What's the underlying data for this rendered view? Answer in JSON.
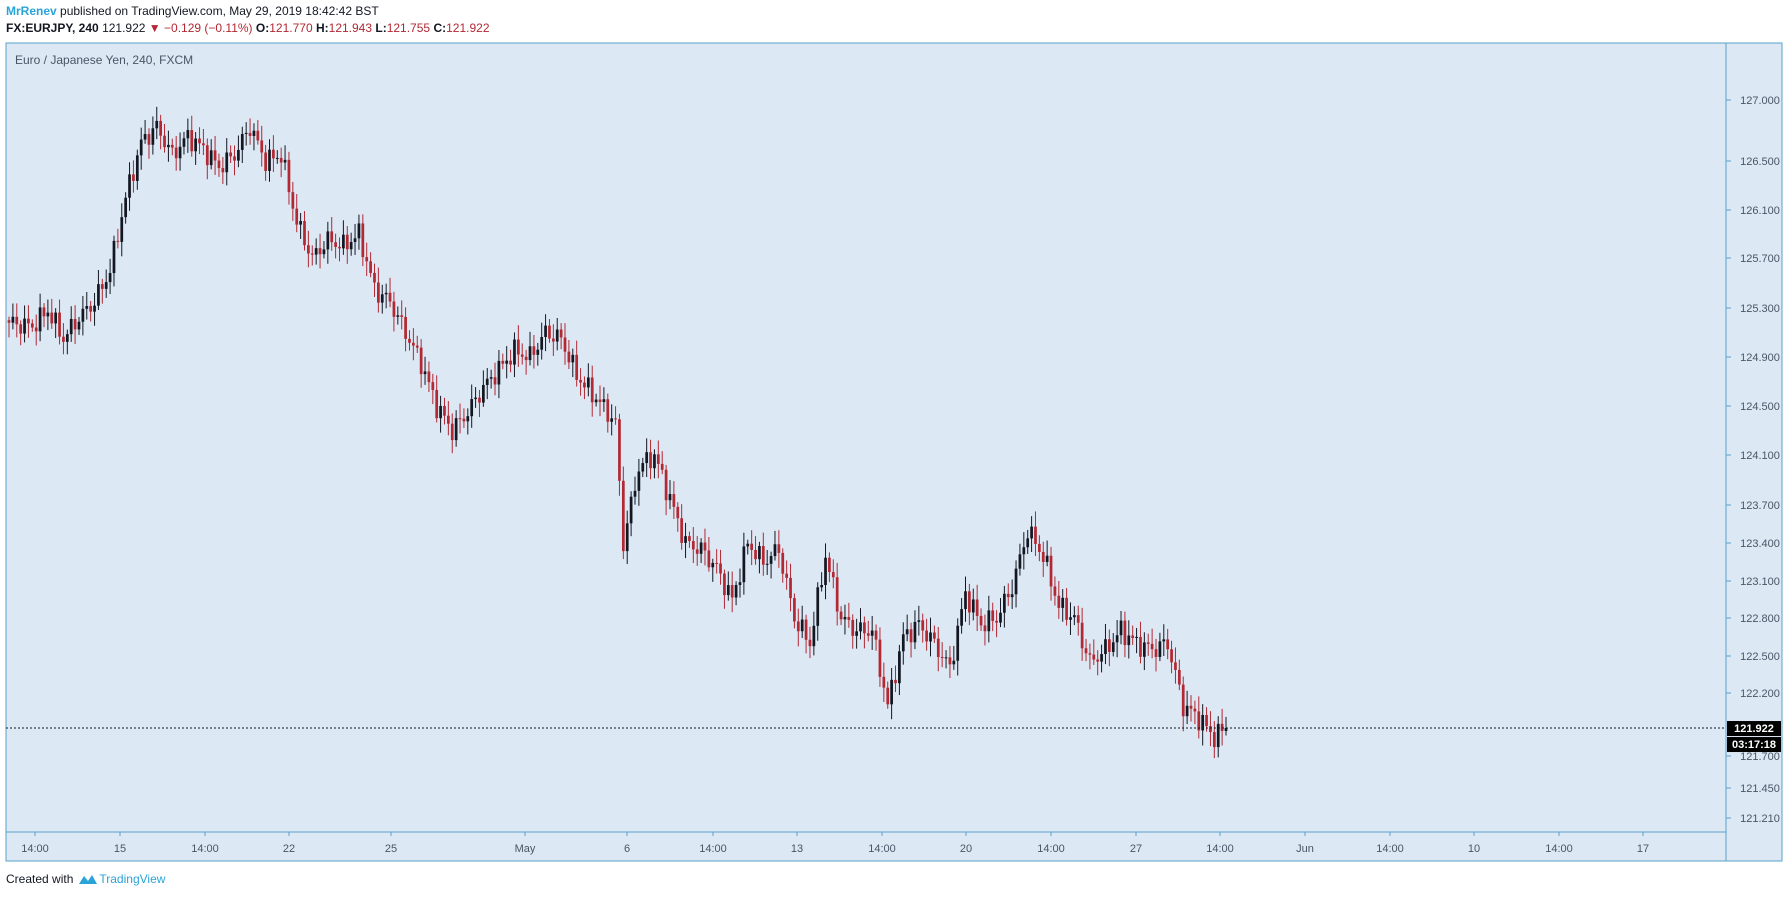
{
  "header": {
    "author": "MrRenev",
    "published_text": "published on TradingView.com, May 29, 2019 18:42:42 BST"
  },
  "ohlc": {
    "symbol": "FX:EURJPY, 240",
    "last": "121.922",
    "arrow": "▼",
    "change": "−0.129 (−0.11%)",
    "o_label": "O:",
    "o_value": "121.770",
    "h_label": "H:",
    "h_value": "121.943",
    "l_label": "L:",
    "l_value": "121.755",
    "c_label": "C:",
    "c_value": "121.922"
  },
  "chart_data": {
    "type": "candlestick",
    "title": "Euro / Japanese Yen, 240, FXCM",
    "x_tick_labels": [
      "14:00",
      "15",
      "14:00",
      "22",
      "25",
      "May",
      "6",
      "14:00",
      "13",
      "14:00",
      "20",
      "14:00",
      "27",
      "14:00",
      "Jun",
      "14:00",
      "10",
      "14:00",
      "17"
    ],
    "y_tick_labels": [
      "127.000",
      "126.500",
      "126.100",
      "125.700",
      "125.300",
      "124.900",
      "124.500",
      "124.100",
      "123.700",
      "123.400",
      "123.100",
      "122.800",
      "122.500",
      "122.200",
      "121.700",
      "121.450",
      "121.210"
    ],
    "y_tick_values": [
      127.0,
      126.5,
      126.1,
      125.7,
      125.3,
      124.9,
      124.5,
      124.1,
      123.7,
      123.4,
      123.1,
      122.8,
      122.5,
      122.2,
      121.7,
      121.45,
      121.21
    ],
    "last_price": "121.922",
    "last_price_value": 121.922,
    "countdown": "03:17:18",
    "grid": false,
    "close_path": [
      [
        0,
        125.18
      ],
      [
        6,
        125.15
      ],
      [
        10,
        125.28
      ],
      [
        14,
        125.05
      ],
      [
        18,
        125.22
      ],
      [
        22,
        125.35
      ],
      [
        26,
        125.6
      ],
      [
        30,
        126.2
      ],
      [
        34,
        126.65
      ],
      [
        38,
        126.78
      ],
      [
        42,
        126.55
      ],
      [
        46,
        126.7
      ],
      [
        50,
        126.6
      ],
      [
        54,
        126.45
      ],
      [
        58,
        126.55
      ],
      [
        62,
        126.78
      ],
      [
        66,
        126.5
      ],
      [
        70,
        126.55
      ],
      [
        74,
        126.0
      ],
      [
        78,
        125.7
      ],
      [
        82,
        125.85
      ],
      [
        86,
        125.8
      ],
      [
        90,
        125.9
      ],
      [
        94,
        125.45
      ],
      [
        98,
        125.35
      ],
      [
        102,
        125.1
      ],
      [
        106,
        124.85
      ],
      [
        110,
        124.5
      ],
      [
        114,
        124.3
      ],
      [
        118,
        124.45
      ],
      [
        122,
        124.65
      ],
      [
        126,
        124.8
      ],
      [
        130,
        124.95
      ],
      [
        134,
        124.9
      ],
      [
        138,
        125.1
      ],
      [
        142,
        125.05
      ],
      [
        146,
        124.75
      ],
      [
        150,
        124.6
      ],
      [
        154,
        124.45
      ],
      [
        156,
        124.35
      ],
      [
        158,
        123.4
      ],
      [
        162,
        124.0
      ],
      [
        166,
        124.1
      ],
      [
        170,
        123.75
      ],
      [
        174,
        123.4
      ],
      [
        178,
        123.35
      ],
      [
        182,
        123.2
      ],
      [
        186,
        122.95
      ],
      [
        190,
        123.4
      ],
      [
        194,
        123.25
      ],
      [
        198,
        123.35
      ],
      [
        202,
        122.8
      ],
      [
        206,
        122.6
      ],
      [
        210,
        123.3
      ],
      [
        214,
        122.8
      ],
      [
        218,
        122.7
      ],
      [
        222,
        122.7
      ],
      [
        226,
        122.1
      ],
      [
        230,
        122.65
      ],
      [
        234,
        122.75
      ],
      [
        238,
        122.6
      ],
      [
        242,
        122.4
      ],
      [
        246,
        123.0
      ],
      [
        250,
        122.75
      ],
      [
        254,
        122.8
      ],
      [
        258,
        123.05
      ],
      [
        262,
        123.5
      ],
      [
        266,
        123.3
      ],
      [
        270,
        122.9
      ],
      [
        274,
        122.8
      ],
      [
        278,
        122.45
      ],
      [
        282,
        122.55
      ],
      [
        286,
        122.7
      ],
      [
        290,
        122.6
      ],
      [
        294,
        122.55
      ],
      [
        298,
        122.6
      ],
      [
        302,
        122.1
      ],
      [
        306,
        122.0
      ],
      [
        310,
        121.85
      ],
      [
        313,
        121.922
      ]
    ]
  }
}
